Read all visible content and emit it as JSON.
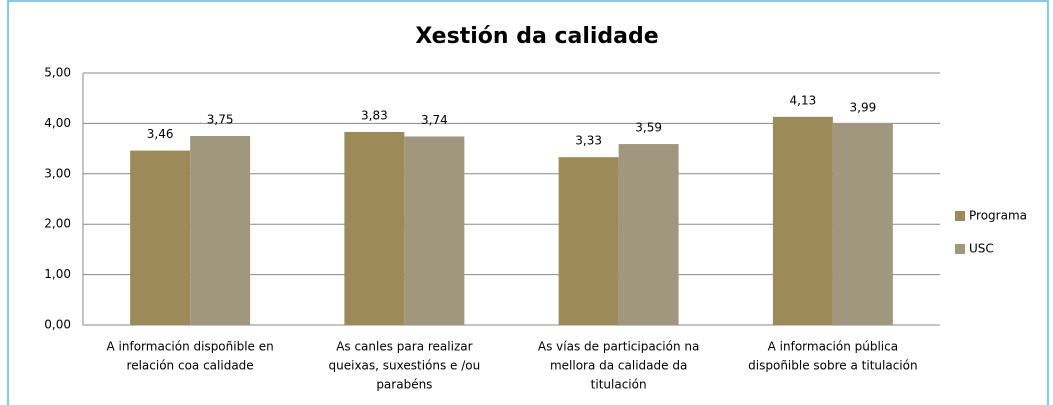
{
  "chart_data": {
    "type": "bar",
    "title": "Xestión da calidade",
    "categories": [
      [
        "A información dispoñible en",
        "relación coa calidade"
      ],
      [
        "As canles para realizar",
        "queixas, suxestións e /ou",
        "parabéns"
      ],
      [
        "As vías de participación na",
        "mellora da calidade da",
        "titulación"
      ],
      [
        "A información pública",
        "dispoñible sobre a titulación"
      ]
    ],
    "series": [
      {
        "name": "Programa",
        "color": "#9c8a58",
        "values": [
          3.46,
          3.83,
          3.33,
          4.13
        ],
        "value_labels": [
          "3,46",
          "3,83",
          "3,33",
          "4,13"
        ]
      },
      {
        "name": "USC",
        "color": "#a0977e",
        "values": [
          3.75,
          3.74,
          3.59,
          3.99
        ],
        "value_labels": [
          "3,75",
          "3,74",
          "3,59",
          "3,99"
        ]
      }
    ],
    "ylim": [
      0,
      5
    ],
    "yticks": [
      {
        "value": 0,
        "label": "0,00"
      },
      {
        "value": 1,
        "label": "1,00"
      },
      {
        "value": 2,
        "label": "2,00"
      },
      {
        "value": 3,
        "label": "3,00"
      },
      {
        "value": 4,
        "label": "4,00"
      },
      {
        "value": 5,
        "label": "5,00"
      }
    ],
    "grid": true,
    "legend": "right"
  }
}
